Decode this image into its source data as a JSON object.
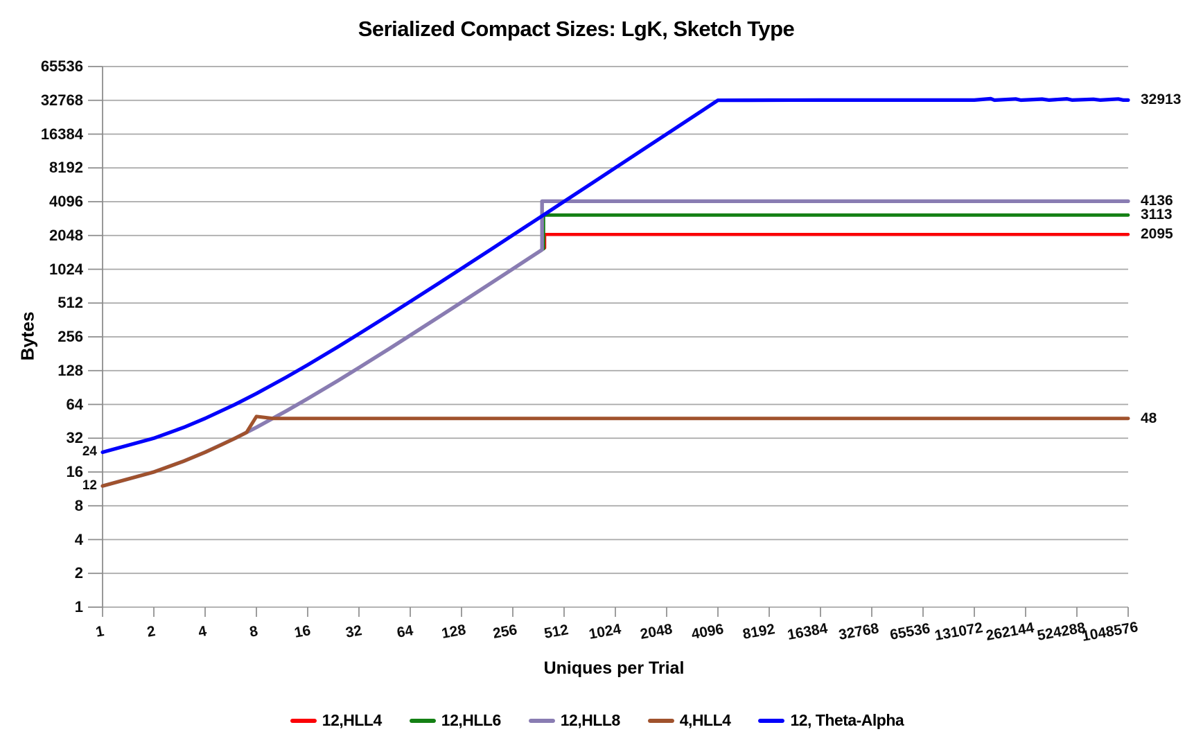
{
  "title": "Serialized Compact Sizes: LgK, Sketch Type",
  "chart_data": {
    "type": "line",
    "title": "Serialized Compact Sizes: LgK, Sketch Type",
    "xlabel": "Uniques per Trial",
    "ylabel": "Bytes",
    "x_scale": "log2",
    "y_scale": "log2",
    "xlim": [
      1,
      1048576
    ],
    "ylim": [
      1,
      65536
    ],
    "grid": "horizontal-only",
    "legend_position": "bottom",
    "x_ticks": [
      1,
      2,
      4,
      8,
      16,
      32,
      64,
      128,
      256,
      512,
      1024,
      2048,
      4096,
      8192,
      16384,
      32768,
      65536,
      131072,
      262144,
      524288,
      1048576
    ],
    "y_ticks": [
      1,
      2,
      4,
      8,
      16,
      32,
      64,
      128,
      256,
      512,
      1024,
      2048,
      4096,
      8192,
      16384,
      32768,
      65536
    ],
    "grid_color": "#a8a8a8",
    "axis_color": "#8c8c8c",
    "series": [
      {
        "name": "12,HLL4",
        "color": "#fb0006",
        "width": 4.5,
        "end_label": "2095",
        "points": [
          [
            1,
            12
          ],
          [
            2,
            16
          ],
          [
            3,
            20
          ],
          [
            4,
            24
          ],
          [
            6,
            32
          ],
          [
            8,
            40
          ],
          [
            12,
            56
          ],
          [
            16,
            72
          ],
          [
            24,
            104
          ],
          [
            32,
            136
          ],
          [
            48,
            200
          ],
          [
            64,
            264
          ],
          [
            96,
            392
          ],
          [
            128,
            520
          ],
          [
            192,
            776
          ],
          [
            256,
            1032
          ],
          [
            320,
            1288
          ],
          [
            380,
            1528
          ],
          [
            394,
            1584
          ],
          [
            394,
            2095
          ],
          [
            512,
            2095
          ],
          [
            4096,
            2095
          ],
          [
            65536,
            2095
          ],
          [
            1048576,
            2095
          ]
        ]
      },
      {
        "name": "12,HLL6",
        "color": "#148014",
        "width": 4.8,
        "end_label": "3113",
        "points": [
          [
            1,
            12
          ],
          [
            2,
            16
          ],
          [
            3,
            20
          ],
          [
            4,
            24
          ],
          [
            6,
            32
          ],
          [
            8,
            40
          ],
          [
            12,
            56
          ],
          [
            16,
            72
          ],
          [
            24,
            104
          ],
          [
            32,
            136
          ],
          [
            48,
            200
          ],
          [
            64,
            264
          ],
          [
            96,
            392
          ],
          [
            128,
            520
          ],
          [
            192,
            776
          ],
          [
            256,
            1032
          ],
          [
            320,
            1288
          ],
          [
            380,
            1528
          ],
          [
            388,
            1560
          ],
          [
            388,
            3113
          ],
          [
            512,
            3113
          ],
          [
            4096,
            3113
          ],
          [
            65536,
            3113
          ],
          [
            1048576,
            3113
          ]
        ]
      },
      {
        "name": "12,HLL8",
        "color": "#897cb2",
        "width": 5.4,
        "end_label": "4136",
        "points": [
          [
            1,
            12
          ],
          [
            2,
            16
          ],
          [
            3,
            20
          ],
          [
            4,
            24
          ],
          [
            6,
            32
          ],
          [
            8,
            40
          ],
          [
            12,
            56
          ],
          [
            16,
            72
          ],
          [
            24,
            104
          ],
          [
            32,
            136
          ],
          [
            48,
            200
          ],
          [
            64,
            264
          ],
          [
            96,
            392
          ],
          [
            128,
            520
          ],
          [
            192,
            776
          ],
          [
            256,
            1032
          ],
          [
            320,
            1288
          ],
          [
            380,
            1528
          ],
          [
            380,
            4136
          ],
          [
            512,
            4136
          ],
          [
            4096,
            4136
          ],
          [
            65536,
            4136
          ],
          [
            1048576,
            4136
          ]
        ]
      },
      {
        "name": "4,HLL4",
        "color": "#a0522d",
        "width": 5.0,
        "end_label": "48",
        "points": [
          [
            1,
            12
          ],
          [
            2,
            16
          ],
          [
            3,
            20
          ],
          [
            4,
            24
          ],
          [
            5,
            28
          ],
          [
            6,
            32
          ],
          [
            7,
            36
          ],
          [
            8,
            50
          ],
          [
            10,
            48
          ],
          [
            64,
            48
          ],
          [
            4096,
            48
          ],
          [
            65536,
            48
          ],
          [
            1048576,
            48
          ]
        ]
      },
      {
        "name": "12, Theta-Alpha",
        "color": "#0301fb",
        "width": 5.2,
        "end_label": "32913",
        "points": [
          [
            1,
            24
          ],
          [
            2,
            32
          ],
          [
            3,
            40
          ],
          [
            4,
            48
          ],
          [
            6,
            64
          ],
          [
            8,
            80
          ],
          [
            12,
            112
          ],
          [
            16,
            144
          ],
          [
            24,
            208
          ],
          [
            32,
            272
          ],
          [
            48,
            400
          ],
          [
            64,
            528
          ],
          [
            96,
            784
          ],
          [
            128,
            1040
          ],
          [
            192,
            1552
          ],
          [
            256,
            2064
          ],
          [
            384,
            3088
          ],
          [
            512,
            4112
          ],
          [
            768,
            6160
          ],
          [
            1024,
            8208
          ],
          [
            1536,
            12304
          ],
          [
            2048,
            16400
          ],
          [
            3072,
            24592
          ],
          [
            4096,
            32784
          ],
          [
            6144,
            32860
          ],
          [
            8192,
            32900
          ],
          [
            16384,
            32913
          ],
          [
            32768,
            32913
          ],
          [
            65536,
            32913
          ],
          [
            131072,
            32913
          ],
          [
            163840,
            33900
          ],
          [
            172032,
            32900
          ],
          [
            229376,
            33700
          ],
          [
            245760,
            32900
          ],
          [
            327680,
            33600
          ],
          [
            360448,
            32913
          ],
          [
            458752,
            33800
          ],
          [
            491520,
            32950
          ],
          [
            655360,
            33500
          ],
          [
            720896,
            32913
          ],
          [
            917504,
            33700
          ],
          [
            983040,
            32913
          ],
          [
            1048576,
            32913
          ]
        ]
      }
    ],
    "point_labels": [
      {
        "text": "24",
        "x": 1,
        "y": 24
      },
      {
        "text": "12",
        "x": 1,
        "y": 12
      }
    ]
  }
}
